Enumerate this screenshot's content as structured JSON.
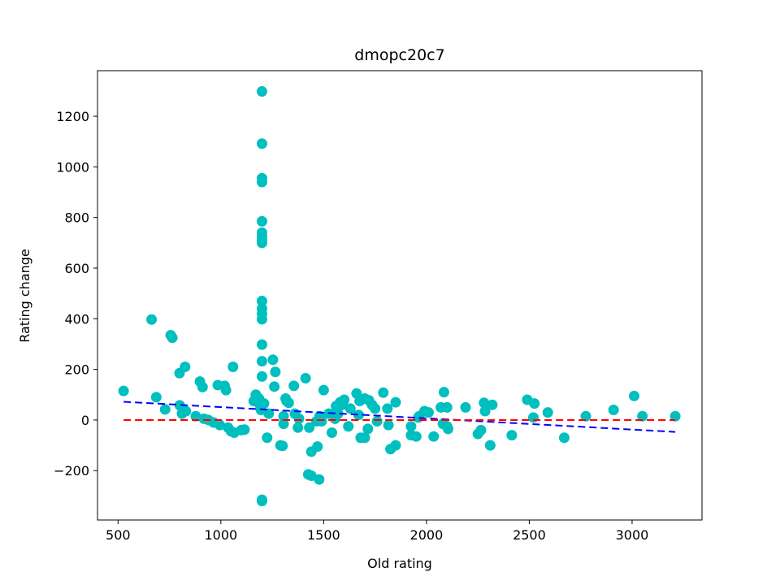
{
  "chart_data": {
    "type": "scatter",
    "title": "dmopc20c7",
    "xlabel": "Old rating",
    "ylabel": "Rating change",
    "xlim": [
      400,
      3340
    ],
    "ylim": [
      -395,
      1380
    ],
    "xticks": [
      500,
      1000,
      1500,
      2000,
      2500,
      3000
    ],
    "yticks": [
      -200,
      0,
      200,
      400,
      600,
      800,
      1000,
      1200
    ],
    "xtick_labels": [
      "500",
      "1000",
      "1500",
      "2000",
      "2500",
      "3000"
    ],
    "ytick_labels": [
      "−200",
      "0",
      "200",
      "400",
      "600",
      "800",
      "1000",
      "1200"
    ],
    "grid": false,
    "colors": {
      "points": "#00bfbf",
      "fit_line": "#0000ff",
      "zero_line": "#ff0000"
    },
    "series": [
      {
        "type": "scatter",
        "points": [
          [
            527,
            115
          ],
          [
            663,
            397
          ],
          [
            686,
            90
          ],
          [
            729,
            42
          ],
          [
            756,
            335
          ],
          [
            764,
            325
          ],
          [
            799,
            185
          ],
          [
            800,
            58
          ],
          [
            811,
            25
          ],
          [
            826,
            210
          ],
          [
            830,
            35
          ],
          [
            878,
            15
          ],
          [
            898,
            152
          ],
          [
            911,
            130
          ],
          [
            918,
            5
          ],
          [
            940,
            0
          ],
          [
            965,
            -10
          ],
          [
            985,
            138
          ],
          [
            995,
            -20
          ],
          [
            1018,
            135
          ],
          [
            1025,
            118
          ],
          [
            1035,
            -30
          ],
          [
            1050,
            -45
          ],
          [
            1059,
            210
          ],
          [
            1065,
            -50
          ],
          [
            1100,
            -40
          ],
          [
            1115,
            -38
          ],
          [
            1160,
            75
          ],
          [
            1170,
            100
          ],
          [
            1185,
            85
          ],
          [
            1190,
            60
          ],
          [
            1195,
            40
          ],
          [
            1200,
            1298
          ],
          [
            1200,
            1092
          ],
          [
            1200,
            955
          ],
          [
            1200,
            940
          ],
          [
            1200,
            785
          ],
          [
            1200,
            740
          ],
          [
            1200,
            725
          ],
          [
            1200,
            712
          ],
          [
            1200,
            700
          ],
          [
            1200,
            470
          ],
          [
            1200,
            440
          ],
          [
            1200,
            420
          ],
          [
            1200,
            398
          ],
          [
            1200,
            298
          ],
          [
            1200,
            232
          ],
          [
            1200,
            172
          ],
          [
            1200,
            -315
          ],
          [
            1200,
            -320
          ],
          [
            1210,
            65
          ],
          [
            1225,
            -70
          ],
          [
            1233,
            25
          ],
          [
            1253,
            238
          ],
          [
            1260,
            132
          ],
          [
            1265,
            190
          ],
          [
            1290,
            -100
          ],
          [
            1300,
            -102
          ],
          [
            1305,
            15
          ],
          [
            1305,
            -15
          ],
          [
            1315,
            85
          ],
          [
            1320,
            75
          ],
          [
            1330,
            68
          ],
          [
            1355,
            135
          ],
          [
            1360,
            25
          ],
          [
            1375,
            -30
          ],
          [
            1380,
            5
          ],
          [
            1412,
            165
          ],
          [
            1425,
            -215
          ],
          [
            1430,
            -30
          ],
          [
            1440,
            -220
          ],
          [
            1440,
            -125
          ],
          [
            1465,
            -5
          ],
          [
            1470,
            -105
          ],
          [
            1478,
            -235
          ],
          [
            1480,
            15
          ],
          [
            1490,
            -5
          ],
          [
            1500,
            118
          ],
          [
            1525,
            25
          ],
          [
            1540,
            -50
          ],
          [
            1555,
            5
          ],
          [
            1560,
            55
          ],
          [
            1570,
            25
          ],
          [
            1580,
            70
          ],
          [
            1590,
            60
          ],
          [
            1600,
            80
          ],
          [
            1620,
            -25
          ],
          [
            1630,
            45
          ],
          [
            1660,
            105
          ],
          [
            1670,
            20
          ],
          [
            1675,
            75
          ],
          [
            1680,
            -70
          ],
          [
            1700,
            -70
          ],
          [
            1700,
            85
          ],
          [
            1715,
            -35
          ],
          [
            1720,
            78
          ],
          [
            1735,
            60
          ],
          [
            1750,
            45
          ],
          [
            1760,
            -5
          ],
          [
            1790,
            108
          ],
          [
            1810,
            45
          ],
          [
            1815,
            -20
          ],
          [
            1825,
            -115
          ],
          [
            1850,
            70
          ],
          [
            1850,
            -100
          ],
          [
            1925,
            -25
          ],
          [
            1925,
            -60
          ],
          [
            1950,
            -65
          ],
          [
            1960,
            10
          ],
          [
            1965,
            15
          ],
          [
            1990,
            35
          ],
          [
            2010,
            30
          ],
          [
            2035,
            -65
          ],
          [
            2070,
            50
          ],
          [
            2080,
            -15
          ],
          [
            2085,
            110
          ],
          [
            2100,
            -25
          ],
          [
            2100,
            50
          ],
          [
            2105,
            -35
          ],
          [
            2190,
            50
          ],
          [
            2250,
            -55
          ],
          [
            2265,
            -40
          ],
          [
            2280,
            68
          ],
          [
            2285,
            35
          ],
          [
            2310,
            -100
          ],
          [
            2320,
            60
          ],
          [
            2415,
            -60
          ],
          [
            2490,
            80
          ],
          [
            2520,
            10
          ],
          [
            2525,
            65
          ],
          [
            2590,
            30
          ],
          [
            2670,
            -70
          ],
          [
            2775,
            15
          ],
          [
            2910,
            40
          ],
          [
            3010,
            95
          ],
          [
            3050,
            15
          ],
          [
            3210,
            15
          ]
        ]
      },
      {
        "type": "line",
        "style": "dashed",
        "points": [
          [
            527,
            72
          ],
          [
            3210,
            -47
          ]
        ]
      },
      {
        "type": "line",
        "style": "dashed",
        "points": [
          [
            527,
            0
          ],
          [
            3210,
            0
          ]
        ]
      }
    ]
  }
}
